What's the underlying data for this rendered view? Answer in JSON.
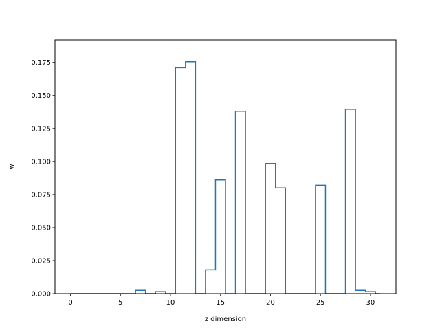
{
  "chart_data": {
    "type": "step",
    "xlabel": "z dimension",
    "ylabel": "w",
    "xlim": [
      -1.55,
      32.55
    ],
    "ylim": [
      0,
      0.192
    ],
    "xticks": [
      0,
      5,
      10,
      15,
      20,
      25,
      30
    ],
    "yticks": [
      0.0,
      0.025,
      0.05,
      0.075,
      0.1,
      0.125,
      0.15,
      0.175
    ],
    "ytick_labels": [
      "0.000",
      "0.025",
      "0.050",
      "0.075",
      "0.100",
      "0.125",
      "0.150",
      "0.175"
    ],
    "step_where": "mid",
    "grid": false,
    "series": [
      {
        "color": "#1f77b4",
        "x": [
          0,
          1,
          2,
          3,
          4,
          5,
          6,
          7,
          8,
          9,
          10,
          11,
          12,
          13,
          14,
          15,
          16,
          17,
          18,
          19,
          20,
          21,
          22,
          23,
          24,
          25,
          26,
          27,
          28,
          29,
          30,
          31
        ],
        "y": [
          0,
          0,
          0,
          0,
          0,
          0,
          0,
          0.0025,
          0,
          0.0015,
          0,
          0.171,
          0.1755,
          0,
          0.018,
          0.086,
          0,
          0.138,
          0,
          0,
          0.0985,
          0.08,
          0,
          0,
          0,
          0.082,
          0,
          0,
          0.1395,
          0.0025,
          0.0015,
          0
        ]
      }
    ]
  }
}
